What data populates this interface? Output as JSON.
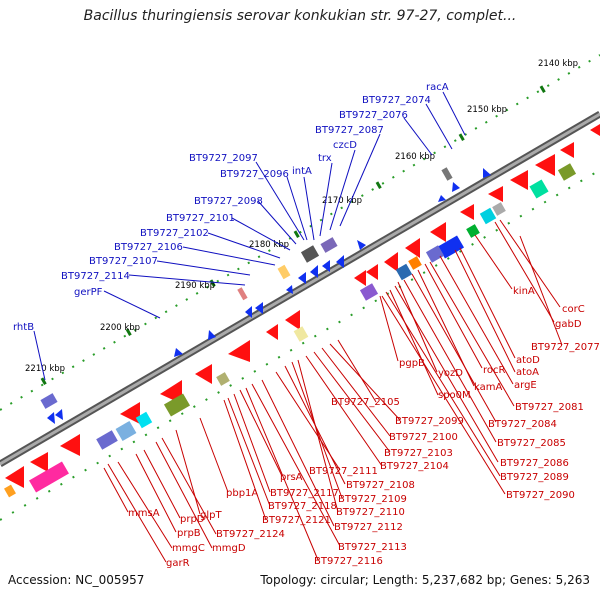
{
  "title": "Bacillus thuringiensis serovar konkukian str. 97-27, complet...",
  "footer": {
    "accession": "Accession: NC_005957",
    "summary": "Topology: circular; Length: 5,237,682 bp; Genes: 5,263"
  },
  "colors": {
    "backbone": "#777777",
    "forward_gene": "#ff1010",
    "reverse_gene": "#1030f0",
    "forward_label": "#c80000",
    "reverse_label": "#1010c0",
    "tick_minor": "#33aa33",
    "tick_major": "#117711"
  },
  "scale_ticks": [
    "2140 kbp",
    "2150 kbp",
    "2160 kbp",
    "2170 kbp",
    "2180 kbp",
    "2190 kbp",
    "2200 kbp",
    "2210 kbp"
  ],
  "top_labels": [
    "racA",
    "BT9727_2074",
    "BT9727_2076",
    "BT9727_2087",
    "czcD",
    "trx",
    "intA",
    "BT9727_2097",
    "BT9727_2096",
    "BT9727_2098",
    "BT9727_2101",
    "BT9727_2102",
    "BT9727_2106",
    "BT9727_2107",
    "BT9727_2114",
    "gerPF",
    "rhtB"
  ],
  "bottom_labels": [
    "corC",
    "gabD",
    "kinA",
    "BT9727_2077",
    "atoD",
    "atoA",
    "argE",
    "rocR",
    "kamA",
    "BT9727_2081",
    "yozD",
    "pgpB",
    "spo0M",
    "BT9727_2084",
    "BT9727_2085",
    "BT9727_2086",
    "BT9727_2089",
    "BT9727_2090",
    "BT9727_2105",
    "BT9727_2099",
    "BT9727_2100",
    "BT9727_2103",
    "BT9727_2104",
    "BT9727_2111",
    "BT9727_2108",
    "BT9727_2109",
    "BT9727_2110",
    "BT9727_2112",
    "BT9727_2113",
    "BT9727_2116",
    "prsA",
    "BT9727_2117",
    "BT9727_2118",
    "BT9727_2121",
    "pbp1A",
    "glpT",
    "BT9727_2124",
    "mmgD",
    "prpD",
    "prpB",
    "mmgC",
    "mmsA",
    "garR"
  ]
}
